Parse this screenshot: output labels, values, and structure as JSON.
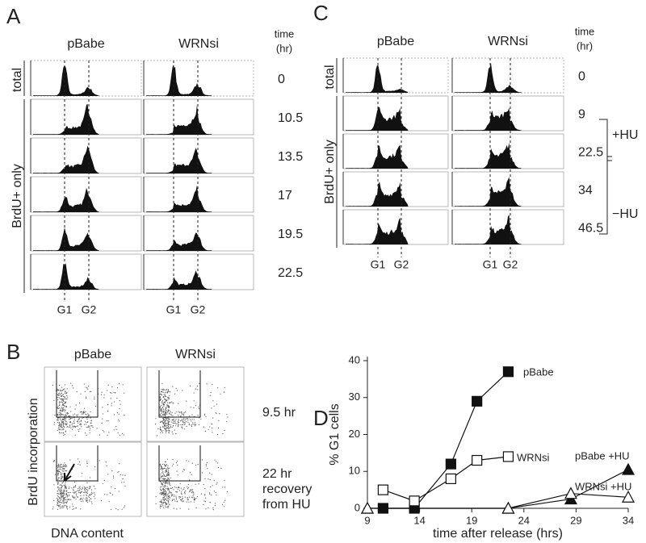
{
  "panel_a": {
    "label": "A",
    "columns": [
      "pBabe",
      "WRNsi"
    ],
    "time_header": [
      "time",
      "(hr)"
    ],
    "row_groups": [
      "total",
      "BrdU+ only"
    ],
    "times": [
      "0",
      "10.5",
      "13.5",
      "17",
      "19.5",
      "22.5"
    ],
    "phases": [
      "G1",
      "G2"
    ]
  },
  "panel_b": {
    "label": "B",
    "columns": [
      "pBabe",
      "WRNsi"
    ],
    "y_label": "BrdU incorporation",
    "x_label": "DNA content",
    "rows": [
      [
        "9.5 hr"
      ],
      [
        "22 hr",
        "recovery",
        "from HU"
      ]
    ]
  },
  "panel_c": {
    "label": "C",
    "columns": [
      "pBabe",
      "WRNsi"
    ],
    "time_header": [
      "time",
      "(hr)"
    ],
    "row_groups": [
      "total",
      "BrdU+ only"
    ],
    "times": [
      "0",
      "9",
      "22.5",
      "34",
      "46.5"
    ],
    "phases": [
      "G1",
      "G2"
    ],
    "treatments": [
      "+HU",
      "−HU"
    ]
  },
  "chart_data": {
    "type": "line",
    "label": "D",
    "xlabel": "time after release (hrs)",
    "ylabel": "% G1 cells",
    "xlim": [
      9,
      34
    ],
    "ylim": [
      0,
      40
    ],
    "xticks": [
      9,
      14,
      19,
      24,
      29,
      34
    ],
    "yticks": [
      0,
      10,
      20,
      30,
      40
    ],
    "series": [
      {
        "name": "pBabe",
        "color": "#111111",
        "marker": "square",
        "filled": true,
        "x": [
          10.5,
          13.5,
          17,
          19.5,
          22.5
        ],
        "values": [
          0,
          0,
          12,
          29,
          37
        ]
      },
      {
        "name": "WRNsi",
        "color": "#111111",
        "marker": "square",
        "filled": false,
        "x": [
          10.5,
          13.5,
          17,
          19.5,
          22.5
        ],
        "values": [
          5,
          2,
          8,
          13,
          14
        ]
      },
      {
        "name": "pBabe +HU",
        "color": "#111111",
        "marker": "triangle",
        "filled": true,
        "x": [
          9,
          22.5,
          28.5,
          34
        ],
        "values": [
          0,
          0,
          2.5,
          10.5
        ]
      },
      {
        "name": "WRNsi +HU",
        "color": "#111111",
        "marker": "triangle",
        "filled": false,
        "x": [
          9,
          22.5,
          28.5,
          34
        ],
        "values": [
          0,
          0,
          4,
          3
        ]
      }
    ]
  }
}
